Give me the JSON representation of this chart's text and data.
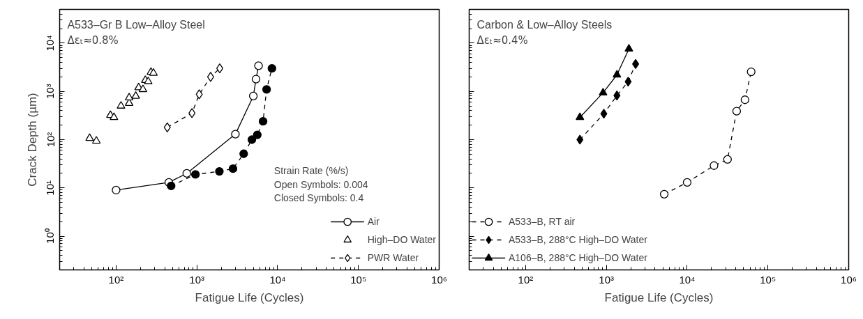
{
  "chart_data": [
    {
      "type": "line",
      "title": "A533–Gr B Low–Alloy Steel",
      "subtitle": "Δεₜ≈0.8%",
      "xlabel": "Fatigue Life (Cycles)",
      "ylabel": "Crack Depth (µm)",
      "log": "xy",
      "grid": false,
      "legend": "bottom right",
      "xlim": [
        20,
        1000000
      ],
      "ylim": [
        0.2,
        50000
      ],
      "xticks": [
        {
          "value": 100,
          "label": "10²"
        },
        {
          "value": 1000,
          "label": "10³"
        },
        {
          "value": 10000,
          "label": "10⁴"
        },
        {
          "value": 100000,
          "label": "10⁵"
        },
        {
          "value": 1000000,
          "label": "10⁶"
        }
      ],
      "yticks": [
        {
          "value": 1,
          "label": "10⁰"
        },
        {
          "value": 10,
          "label": "10¹"
        },
        {
          "value": 100,
          "label": "10²"
        },
        {
          "value": 1000,
          "label": "10³"
        },
        {
          "value": 10000,
          "label": "10⁴"
        }
      ],
      "annotations": [
        "Strain Rate (%/s)",
        "Open Symbols: 0.004",
        "Closed Symbols: 0.4"
      ],
      "series": [
        {
          "name": "Air",
          "marker": "circle",
          "line_style": "solid",
          "color": "#ffffff",
          "x": [
            100,
            450,
            750,
            3000,
            5000,
            5400,
            5800
          ],
          "values": [
            9,
            13,
            20,
            130,
            800,
            1800,
            3400
          ]
        },
        {
          "marker": "circle",
          "line_style": "dashed",
          "color": "#000000",
          "x": [
            480,
            960,
            1900,
            2800,
            3800,
            4800,
            5600,
            6600,
            7300,
            8500
          ],
          "values": [
            11,
            19,
            22,
            25,
            51,
            100,
            126,
            240,
            1100,
            3000
          ]
        },
        {
          "name": "High–DO Water",
          "type": "scatter",
          "marker": "triangle",
          "color": "#ffffff",
          "x": [
            47,
            57,
            85,
            94,
            115,
            145,
            145,
            175,
            190,
            215,
            230,
            250,
            270,
            290
          ],
          "values": [
            107,
            94,
            320,
            290,
            500,
            570,
            740,
            800,
            1200,
            1100,
            1700,
            1600,
            2500,
            2400
          ]
        },
        {
          "name": "PWR Water",
          "marker": "diamond",
          "line_style": "dashed",
          "color": "#ffffff",
          "x": [
            430,
            870,
            1070,
            1480,
            1920
          ],
          "values": [
            180,
            355,
            870,
            2000,
            3000
          ]
        }
      ]
    },
    {
      "type": "line",
      "title": "Carbon & Low–Alloy Steels",
      "subtitle": "Δεₜ≈0.4%",
      "xlabel": "Fatigue Life (Cycles)",
      "log": "xy",
      "grid": false,
      "legend": "bottom left",
      "tick_labels": "x",
      "xlim": [
        20,
        1000000
      ],
      "ylim": [
        0.2,
        50000
      ],
      "xticks": [
        {
          "value": 100,
          "label": "10²"
        },
        {
          "value": 1000,
          "label": "10³"
        },
        {
          "value": 10000,
          "label": "10⁴"
        },
        {
          "value": 100000,
          "label": "10⁵"
        },
        {
          "value": 1000000,
          "label": "10⁶"
        }
      ],
      "yticks": [
        1,
        10,
        100,
        1000,
        10000
      ],
      "series": [
        {
          "name": "A533–B, RT air",
          "marker": "circle",
          "line_style": "dashed",
          "color": "#ffffff",
          "x": [
            5200,
            10000,
            21500,
            31600,
            41000,
            52000,
            62000
          ],
          "values": [
            7.4,
            13,
            29,
            39,
            390,
            670,
            2550
          ]
        },
        {
          "name": "A533–B, 288°C High–DO Water",
          "marker": "diamond",
          "line_style": "dashed",
          "color": "#000000",
          "x": [
            470,
            930,
            1350,
            1860,
            2300
          ],
          "values": [
            100,
            345,
            820,
            1590,
            3700
          ]
        },
        {
          "name": "A106–B, 288°C High–DO Water",
          "marker": "triangle",
          "line_style": "solid",
          "color": "#000000",
          "x": [
            470,
            910,
            1350,
            1900
          ],
          "values": [
            290,
            940,
            2200,
            7600
          ]
        }
      ]
    }
  ]
}
